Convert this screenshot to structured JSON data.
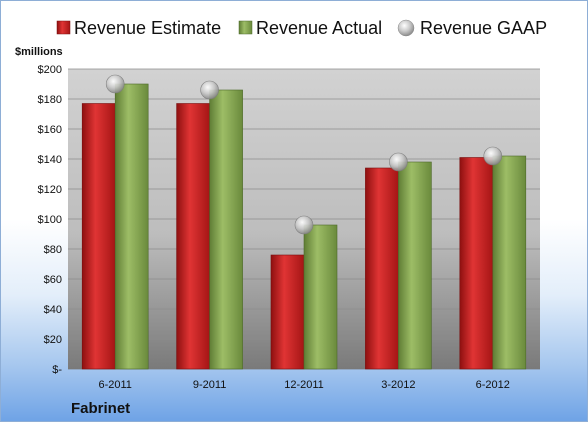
{
  "chart_data": {
    "type": "bar",
    "company": "Fabrinet",
    "units_label": "$millions",
    "categories": [
      "6-2011",
      "9-2011",
      "12-2011",
      "3-2012",
      "6-2012"
    ],
    "series": [
      {
        "name": "Revenue Estimate",
        "kind": "bar",
        "color": "#d42a2a",
        "values": [
          177,
          177,
          76,
          134,
          141
        ]
      },
      {
        "name": "Revenue Actual",
        "kind": "bar",
        "color": "#8fb05a",
        "values": [
          190,
          186,
          96,
          138,
          142
        ]
      },
      {
        "name": "Revenue GAAP",
        "kind": "marker",
        "color": "#b8b8b8",
        "values": [
          190,
          186,
          96,
          138,
          142
        ]
      }
    ],
    "y_ticks": [
      "$-",
      "$20",
      "$40",
      "$60",
      "$80",
      "$100",
      "$120",
      "$140",
      "$160",
      "$180",
      "$200"
    ],
    "ylim": [
      0,
      200
    ],
    "grid": true,
    "legend": "top"
  }
}
